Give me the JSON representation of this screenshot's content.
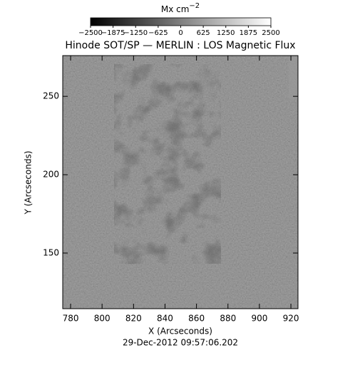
{
  "chart_data": {
    "type": "image",
    "title": "Hinode SOT/SP — MERLIN : LOS Magnetic Flux",
    "subtitle": "29-Dec-2012 09:57:06.202",
    "xlabel": "X (Arcseconds)",
    "ylabel": "Y (Arcseconds)",
    "xlim": [
      775,
      924.5
    ],
    "ylim": [
      114.5,
      276
    ],
    "xticks": [
      780,
      800,
      820,
      840,
      860,
      880,
      900,
      920
    ],
    "yticks": [
      150,
      200,
      250
    ],
    "colorbar": {
      "label": "Mx cm",
      "label_exponent": "−2",
      "lim": [
        -2500,
        2500
      ],
      "ticks": [
        -2500,
        -1875,
        -1250,
        -625,
        0,
        625,
        1250,
        1875,
        2500
      ]
    }
  }
}
